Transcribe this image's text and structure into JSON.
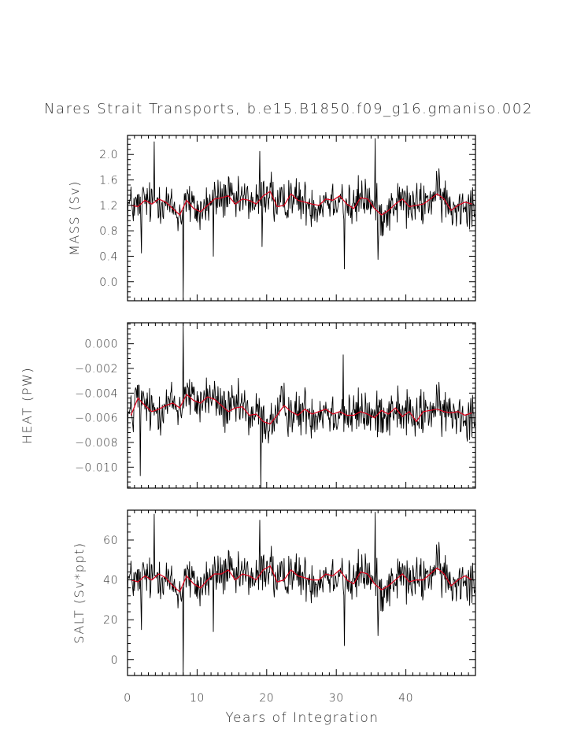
{
  "title": "Nares Strait Transports, b.e15.B1850.f09_g16.gmaniso.002",
  "colors": {
    "raw": "#000000",
    "smooth": "#e0001b",
    "axes": "#000000"
  },
  "chart_data": [
    {
      "type": "line",
      "name": "mass",
      "ylabel": "MASS (Sv)",
      "ylim": [
        -0.3,
        2.3
      ],
      "yticks": [
        0.0,
        0.4,
        0.8,
        1.2,
        1.6,
        2.0
      ],
      "ytick_labels": [
        "0.0",
        "0.4",
        "0.8",
        "1.2",
        "1.6",
        "2.0"
      ],
      "baseline": 1.22,
      "noise": 0.2,
      "smooth_series": [
        1.2,
        1.18,
        1.28,
        1.22,
        1.3,
        1.25,
        1.15,
        1.05,
        1.28,
        1.15,
        1.1,
        1.2,
        1.3,
        1.32,
        1.35,
        1.22,
        1.3,
        1.28,
        1.22,
        1.35,
        1.42,
        1.18,
        1.2,
        1.38,
        1.28,
        1.25,
        1.22,
        1.2,
        1.3,
        1.28,
        1.35,
        1.22,
        1.15,
        1.32,
        1.3,
        1.15,
        1.05,
        1.12,
        1.22,
        1.3,
        1.18,
        1.2,
        1.22,
        1.3,
        1.38,
        1.3,
        1.12,
        1.2,
        1.25,
        1.22
      ],
      "spikes": [
        {
          "x": 3.8,
          "y": 2.2
        },
        {
          "x": 8.0,
          "y": -0.3
        },
        {
          "x": 19.0,
          "y": 2.05
        },
        {
          "x": 19.3,
          "y": 0.55
        },
        {
          "x": 31.2,
          "y": 0.2
        },
        {
          "x": 35.6,
          "y": 2.25
        },
        {
          "x": 36.0,
          "y": 0.35
        },
        {
          "x": 12.3,
          "y": 0.4
        },
        {
          "x": 2.0,
          "y": 0.45
        }
      ]
    },
    {
      "type": "line",
      "name": "heat",
      "ylabel": "HEAT (PW)",
      "ylim": [
        -0.0117,
        0.0017
      ],
      "yticks": [
        -0.01,
        -0.008,
        -0.006,
        -0.004,
        -0.002,
        0.0
      ],
      "ytick_labels": [
        "−0.010",
        "−0.008",
        "−0.006",
        "−0.004",
        "−0.002",
        "0.000"
      ],
      "baseline": -0.0054,
      "noise": 0.0011,
      "smooth_series": [
        -0.0058,
        -0.0044,
        -0.005,
        -0.0055,
        -0.0053,
        -0.005,
        -0.0048,
        -0.0052,
        -0.0041,
        -0.0046,
        -0.0048,
        -0.0043,
        -0.0045,
        -0.005,
        -0.0055,
        -0.0052,
        -0.0051,
        -0.0058,
        -0.0057,
        -0.0063,
        -0.0065,
        -0.0058,
        -0.005,
        -0.0055,
        -0.0058,
        -0.0053,
        -0.0057,
        -0.0055,
        -0.0053,
        -0.0057,
        -0.0055,
        -0.0058,
        -0.0058,
        -0.0055,
        -0.0057,
        -0.006,
        -0.0054,
        -0.0057,
        -0.0052,
        -0.0059,
        -0.0055,
        -0.0063,
        -0.0055,
        -0.0054,
        -0.0053,
        -0.0055,
        -0.0056,
        -0.0055,
        -0.0058,
        -0.0056
      ],
      "spikes": [
        {
          "x": 8.0,
          "y": 0.0017
        },
        {
          "x": 19.2,
          "y": -0.0117
        },
        {
          "x": 1.8,
          "y": -0.0107
        },
        {
          "x": 31.0,
          "y": -0.0009
        }
      ]
    },
    {
      "type": "line",
      "name": "salt",
      "ylabel": "SALT (Sv*ppt)",
      "ylim": [
        -8,
        75
      ],
      "yticks": [
        0,
        20,
        40,
        60
      ],
      "ytick_labels": [
        "0",
        "20",
        "40",
        "60"
      ],
      "baseline": 40.5,
      "noise": 6.5,
      "smooth_series": [
        40,
        39,
        42,
        40,
        43,
        41,
        37,
        34,
        42,
        38,
        36,
        40,
        43,
        43,
        45,
        40,
        43,
        42,
        40,
        45,
        47,
        39,
        40,
        45,
        42,
        41,
        40,
        40,
        43,
        42,
        45,
        40,
        38,
        44,
        43,
        38,
        35,
        37,
        40,
        43,
        39,
        40,
        40,
        43,
        46,
        43,
        37,
        40,
        42,
        40
      ],
      "spikes": [
        {
          "x": 3.8,
          "y": 73
        },
        {
          "x": 8.0,
          "y": -8
        },
        {
          "x": 19.0,
          "y": 70
        },
        {
          "x": 31.2,
          "y": 7
        },
        {
          "x": 35.6,
          "y": 74
        },
        {
          "x": 36.0,
          "y": 12
        },
        {
          "x": 12.3,
          "y": 14
        },
        {
          "x": 2.0,
          "y": 15
        }
      ]
    }
  ],
  "x_axis": {
    "label": "Years of Integration",
    "xlim": [
      0,
      50
    ],
    "ticks": [
      0,
      10,
      20,
      30,
      40
    ],
    "tick_labels": [
      "0",
      "10",
      "20",
      "30",
      "40"
    ]
  }
}
